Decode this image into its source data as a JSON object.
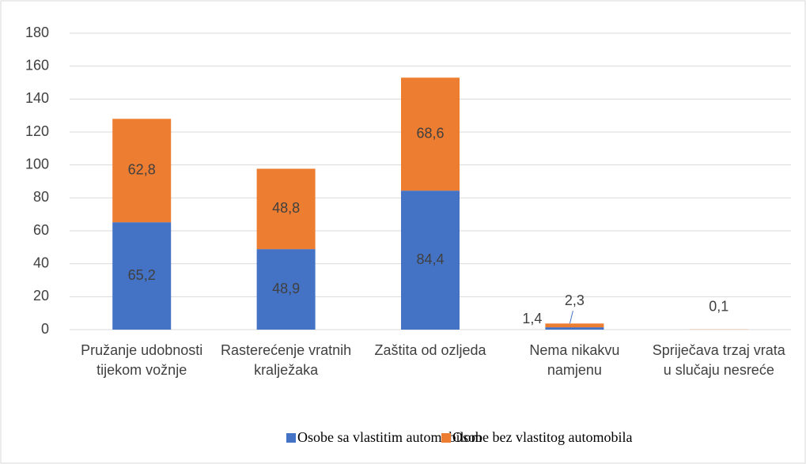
{
  "chart_data": {
    "type": "bar",
    "stacked": true,
    "categories": [
      "Pružanje udobnosti tijekom vožnje",
      "Rasterećenje vratnih kralježaka",
      "Zaštita od ozljeda",
      "Nema nikakvu namjenu",
      "Spriječava trzaj vrata u slučaju nesreće"
    ],
    "series": [
      {
        "name": "Osobe sa vlastitim automobilom",
        "color": "#4472c4",
        "values": [
          65.2,
          48.9,
          84.4,
          1.4,
          null
        ],
        "value_labels": [
          "65,2",
          "48,9",
          "84,4",
          "1,4",
          null
        ]
      },
      {
        "name": "Osobe bez vlastitog automobila",
        "color": "#ed7d31",
        "values": [
          62.8,
          48.8,
          68.6,
          2.3,
          0.1
        ],
        "value_labels": [
          "62,8",
          "48,8",
          "68,6",
          "2,3",
          "0,1"
        ]
      }
    ],
    "ylim": [
      0,
      180
    ],
    "yticks": [
      0,
      20,
      40,
      60,
      80,
      100,
      120,
      140,
      160,
      180
    ],
    "grid": true,
    "legend": "bottom"
  }
}
